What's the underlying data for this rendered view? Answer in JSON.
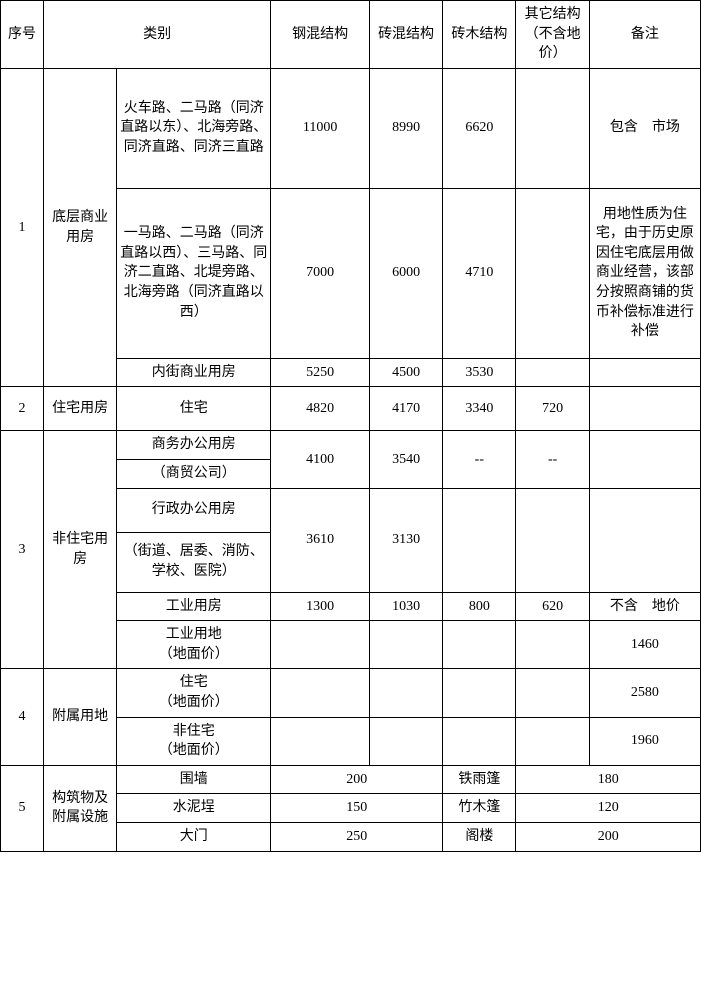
{
  "header": {
    "seq": "序号",
    "category": "类别",
    "col_steel": "钢混结构",
    "col_brick": "砖混结构",
    "col_brickwood": "砖木结构",
    "col_other": "其它结构（不含地价）",
    "col_note": "备注"
  },
  "r1": {
    "seq": "1",
    "cat": "底层商业用房",
    "a_desc": "火车路、二马路（同济直路以东）、北海旁路、同济直路、同济三直路",
    "a_v1": "11000",
    "a_v2": "8990",
    "a_v3": "6620",
    "a_note": "包含　市场",
    "b_desc": "一马路、二马路（同济直路以西）、三马路、同济二直路、北堤旁路、北海旁路（同济直路以西）",
    "b_v1": "7000",
    "b_v2": "6000",
    "b_v3": "4710",
    "b_note": "用地性质为住宅，由于历史原因住宅底层用做商业经营，该部分按照商铺的货币补偿标准进行补偿",
    "c_desc": "内街商业用房",
    "c_v1": "5250",
    "c_v2": "4500",
    "c_v3": "3530"
  },
  "r2": {
    "seq": "2",
    "cat": "住宅用房",
    "desc": "住宅",
    "v1": "4820",
    "v2": "4170",
    "v3": "3340",
    "v4": "720"
  },
  "r3": {
    "seq": "3",
    "cat": "非住宅用房",
    "a_desc1": "商务办公用房",
    "a_desc2": "（商贸公司）",
    "a_v1": "4100",
    "a_v2": "3540",
    "a_v3": "--",
    "a_v4": "--",
    "b_desc1": "行政办公用房",
    "b_desc2": "（街道、居委、消防、学校、医院）",
    "b_v1": "3610",
    "b_v2": "3130",
    "c_desc": "工业用房",
    "c_v1": "1300",
    "c_v2": "1030",
    "c_v3": "800",
    "c_v4": "620",
    "c_note": "不含　地价",
    "d_desc1": "工业用地",
    "d_desc2": "（地面价）",
    "d_note": "1460"
  },
  "r4": {
    "seq": "4",
    "cat": "附属用地",
    "a_desc1": "住宅",
    "a_desc2": "（地面价）",
    "a_note": "2580",
    "b_desc1": "非住宅",
    "b_desc2": "（地面价）",
    "b_note": "1960"
  },
  "r5": {
    "seq": "5",
    "cat": "构筑物及附属设施",
    "a_l": "围墙",
    "a_lv": "200",
    "a_r": "铁雨篷",
    "a_rv": "180",
    "b_l": "水泥埕",
    "b_lv": "150",
    "b_r": "竹木篷",
    "b_rv": "120",
    "c_l": "大门",
    "c_lv": "250",
    "c_r": "阁楼",
    "c_rv": "200"
  }
}
